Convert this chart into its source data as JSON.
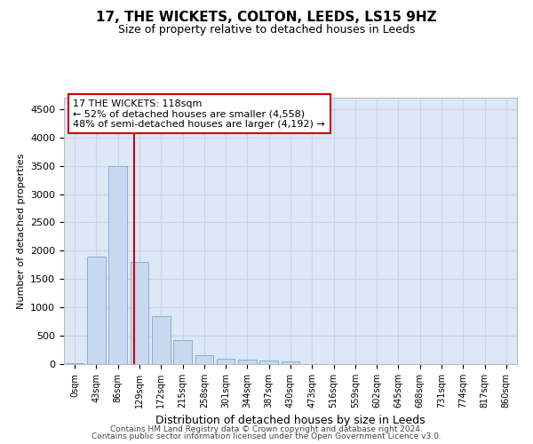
{
  "title": "17, THE WICKETS, COLTON, LEEDS, LS15 9HZ",
  "subtitle": "Size of property relative to detached houses in Leeds",
  "xlabel": "Distribution of detached houses by size in Leeds",
  "ylabel": "Number of detached properties",
  "footer_line1": "Contains HM Land Registry data © Crown copyright and database right 2024.",
  "footer_line2": "Contains public sector information licensed under the Open Government Licence v3.0.",
  "bar_labels": [
    "0sqm",
    "43sqm",
    "86sqm",
    "129sqm",
    "172sqm",
    "215sqm",
    "258sqm",
    "301sqm",
    "344sqm",
    "387sqm",
    "430sqm",
    "473sqm",
    "516sqm",
    "559sqm",
    "602sqm",
    "645sqm",
    "688sqm",
    "731sqm",
    "774sqm",
    "817sqm",
    "860sqm"
  ],
  "bar_values": [
    10,
    1900,
    3500,
    1800,
    850,
    430,
    160,
    100,
    75,
    55,
    45,
    5,
    0,
    0,
    0,
    0,
    0,
    0,
    0,
    0,
    0
  ],
  "bar_color": "#c8d8ee",
  "bar_edgecolor": "#8aaed4",
  "property_line_color": "#cc0000",
  "annotation_text": "17 THE WICKETS: 118sqm\n← 52% of detached houses are smaller (4,558)\n48% of semi-detached houses are larger (4,192) →",
  "annotation_box_edgecolor": "#cc0000",
  "ylim": [
    0,
    4700
  ],
  "yticks": [
    0,
    500,
    1000,
    1500,
    2000,
    2500,
    3000,
    3500,
    4000,
    4500
  ],
  "grid_color": "#c8d4e8",
  "background_color": "#dce8f5"
}
